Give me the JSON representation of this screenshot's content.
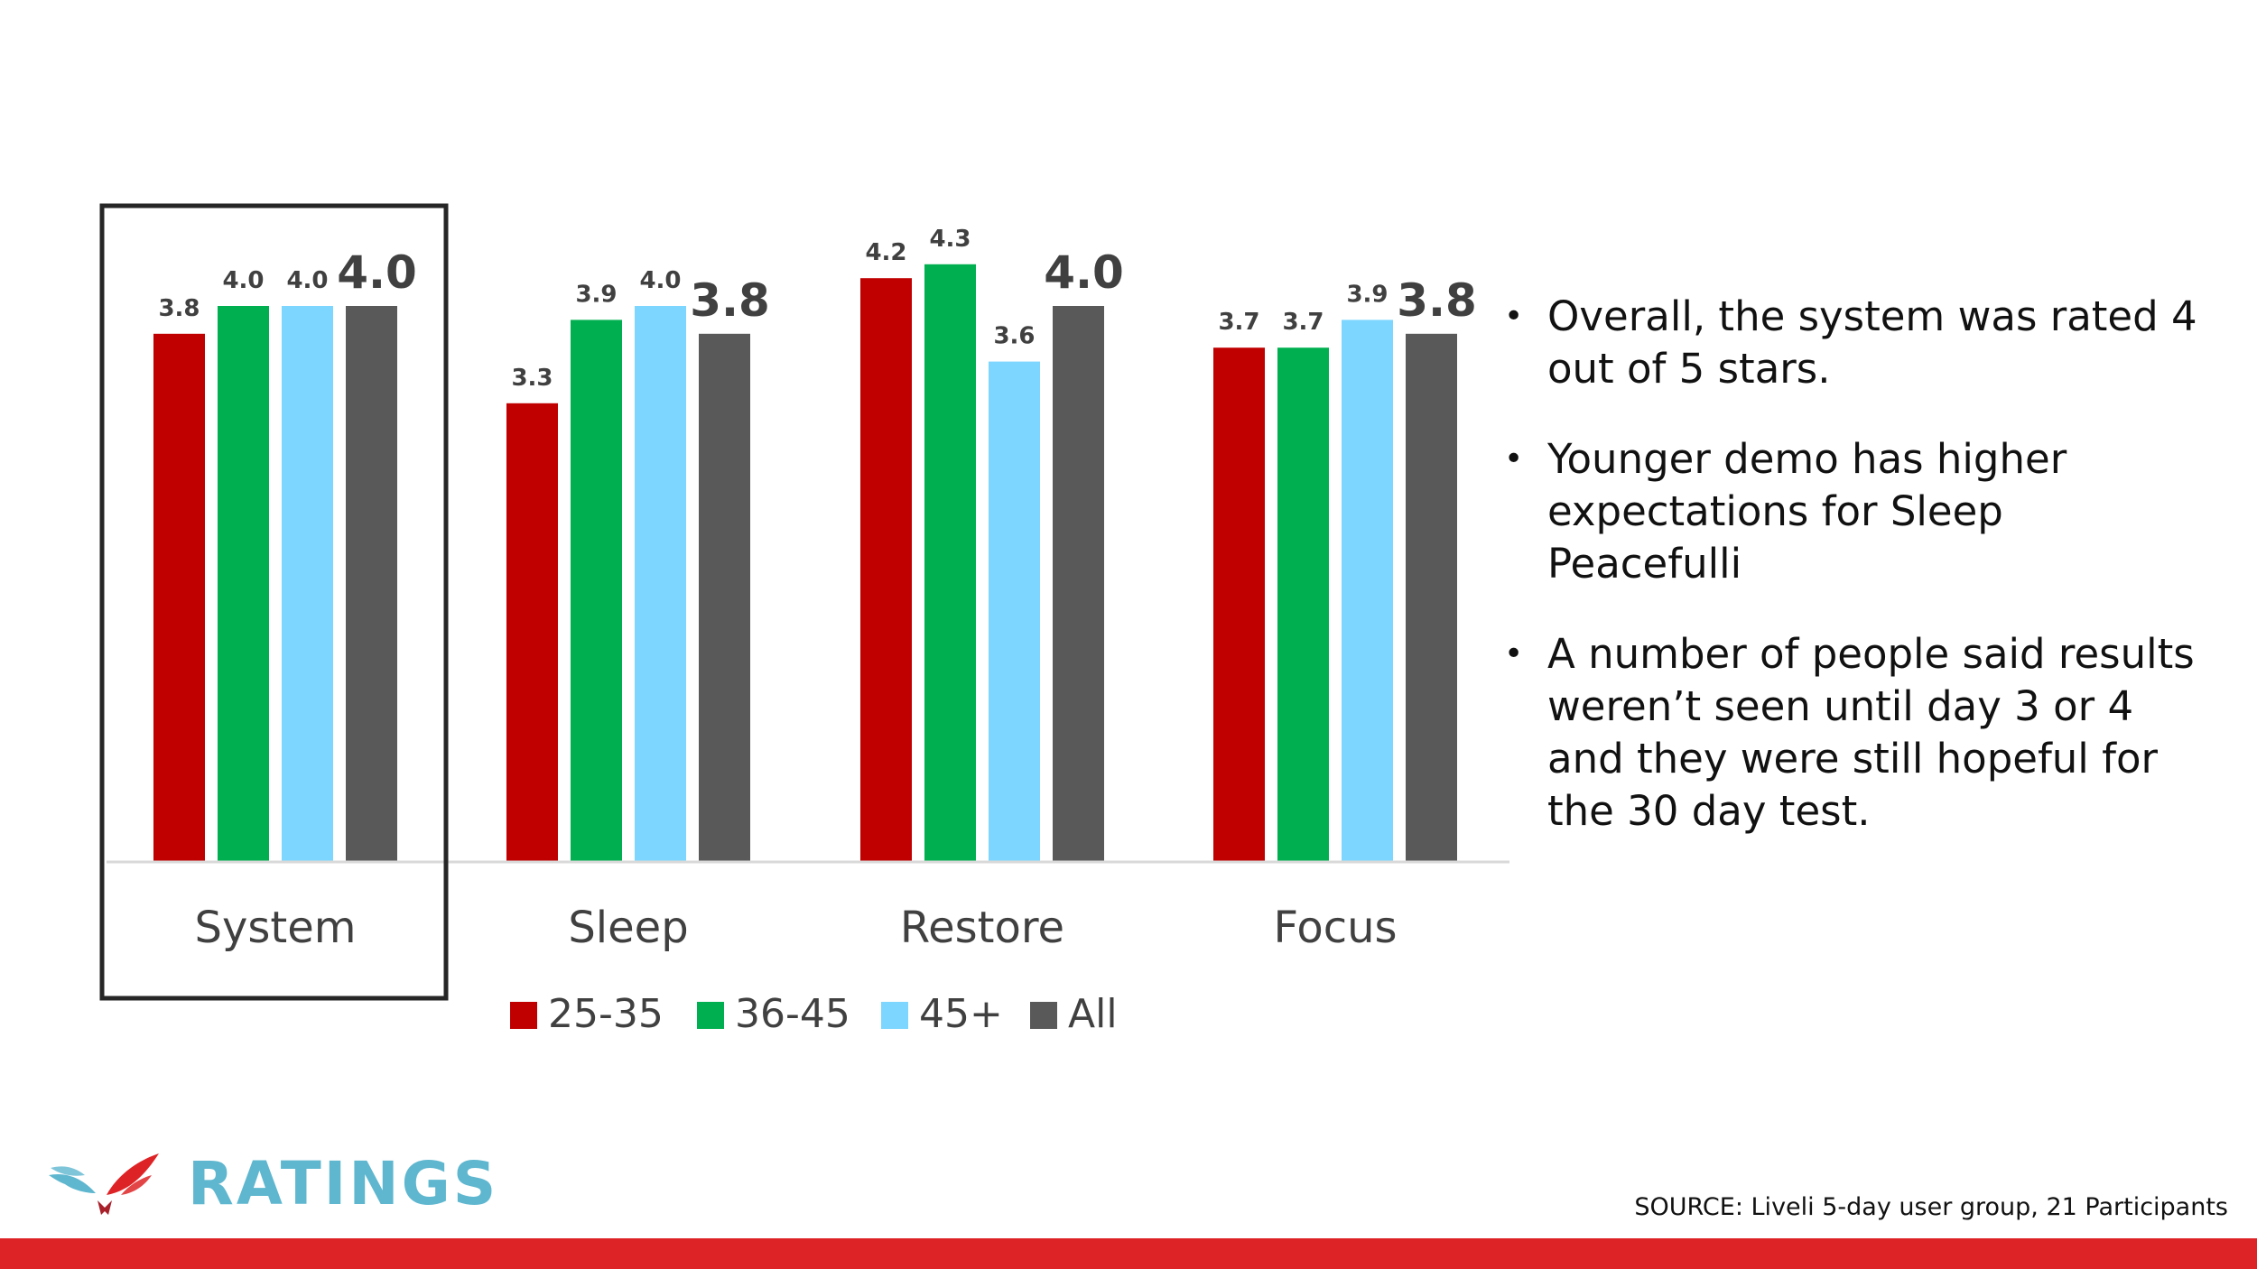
{
  "colors": {
    "series_25_35": "#c00000",
    "series_36_45": "#00b050",
    "series_45_plus": "#7dd6ff",
    "series_all": "#595959",
    "brand_blue": "#5fb7cf",
    "footer_red": "#de2326"
  },
  "chart_data": {
    "type": "bar",
    "categories": [
      "System",
      "Sleep",
      "Restore",
      "Focus"
    ],
    "series": [
      {
        "name": "25-35",
        "values": [
          3.8,
          3.3,
          4.2,
          3.7
        ],
        "labels": [
          "3.8",
          "3.3",
          "4.2",
          "3.7"
        ]
      },
      {
        "name": "36-45",
        "values": [
          4.0,
          3.9,
          4.3,
          3.7
        ],
        "labels": [
          "4.0",
          "3.9",
          "4.3",
          "3.7"
        ]
      },
      {
        "name": "45+",
        "values": [
          4.0,
          4.0,
          3.6,
          3.9
        ],
        "labels": [
          "4.0",
          "4.0",
          "3.6",
          "3.9"
        ]
      },
      {
        "name": "All",
        "values": [
          4.0,
          3.8,
          4.0,
          3.8
        ],
        "labels": [
          "4.0",
          "3.8",
          "4.0",
          "3.8"
        ]
      }
    ],
    "ylim": [
      0,
      4.5
    ],
    "grid": false,
    "legend": "bottom",
    "highlighted_category": "System"
  },
  "bullets": [
    "Overall, the system was rated 4 out of 5 stars.",
    "Younger demo has higher expectations for Sleep Peacefulli",
    "A number of people said results weren’t seen until day 3 or 4 and they were still hopeful for the 30 day test."
  ],
  "bullet_glyph": "•",
  "footer": {
    "title": "RATINGS",
    "source": "SOURCE: Liveli 5-day user group, 21 Participants",
    "logo_icon": "wings-logo-icon"
  }
}
